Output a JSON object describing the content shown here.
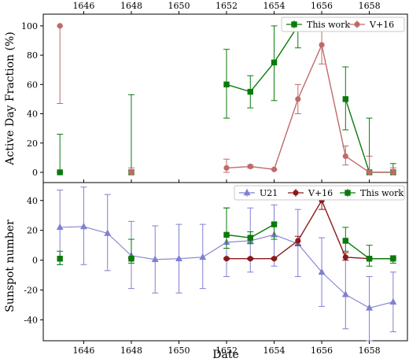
{
  "chart_data": [
    {
      "type": "line",
      "ylabel": "Active Day Fraction (%)",
      "xlim": [
        1644.3,
        1659.6
      ],
      "ylim": [
        -7,
        108
      ],
      "xticks_top": [
        1646,
        1648,
        1650,
        1652,
        1654,
        1656,
        1658
      ],
      "yticks": [
        0,
        20,
        40,
        60,
        80,
        100
      ],
      "grid": false,
      "legend": "top-right",
      "series": [
        {
          "name": "This work",
          "color": "#0a7a0a",
          "marker": "square",
          "points": [
            {
              "x": 1645,
              "y": 0,
              "lo": 0,
              "hi": 26
            },
            {
              "x": 1648,
              "y": 0,
              "lo": 0,
              "hi": 53
            },
            {
              "x": 1652,
              "y": 60,
              "lo": 37,
              "hi": 84
            },
            {
              "x": 1653,
              "y": 55,
              "lo": 44,
              "hi": 66
            },
            {
              "x": 1654,
              "y": 75,
              "lo": 49,
              "hi": 100
            },
            {
              "x": 1655,
              "y": 100,
              "lo": 85,
              "hi": 100
            },
            {
              "x": 1657,
              "y": 50,
              "lo": 29,
              "hi": 72
            },
            {
              "x": 1658,
              "y": 0,
              "lo": 0,
              "hi": 37
            },
            {
              "x": 1659,
              "y": 0,
              "lo": 0,
              "hi": 6
            }
          ],
          "connect": [
            [
              2,
              3,
              4,
              5
            ],
            [
              6,
              7,
              8
            ]
          ]
        },
        {
          "name": "V+16",
          "color": "#c06a6a",
          "marker": "circle",
          "points": [
            {
              "x": 1645,
              "y": 100,
              "lo": 47,
              "hi": 100
            },
            {
              "x": 1648,
              "y": 0,
              "lo": 0,
              "hi": 3
            },
            {
              "x": 1652,
              "y": 3,
              "lo": 0,
              "hi": 9
            },
            {
              "x": 1653,
              "y": 4,
              "lo": 3,
              "hi": 5
            },
            {
              "x": 1654,
              "y": 2,
              "lo": 2,
              "hi": 2
            },
            {
              "x": 1655,
              "y": 50,
              "lo": 40,
              "hi": 60
            },
            {
              "x": 1656,
              "y": 87,
              "lo": 74,
              "hi": 100
            },
            {
              "x": 1657,
              "y": 11,
              "lo": 5,
              "hi": 18
            },
            {
              "x": 1658,
              "y": 0,
              "lo": 0,
              "hi": 11
            },
            {
              "x": 1659,
              "y": 0,
              "lo": 0,
              "hi": 3
            }
          ],
          "connect": [
            [
              2,
              3,
              4,
              5,
              6,
              7,
              8,
              9
            ]
          ]
        }
      ]
    },
    {
      "type": "line",
      "xlabel": "Date",
      "ylabel": "Sunspot number",
      "xlim": [
        1644.3,
        1659.6
      ],
      "ylim": [
        -54,
        52
      ],
      "xticks": [
        1646,
        1648,
        1650,
        1652,
        1654,
        1656,
        1658
      ],
      "yticks": [
        -40,
        -20,
        0,
        20,
        40
      ],
      "grid": false,
      "legend": "top-right",
      "series": [
        {
          "name": "U21",
          "color": "#8080d0",
          "marker": "triangle",
          "points": [
            {
              "x": 1645,
              "y": 22,
              "lo": -3,
              "hi": 47
            },
            {
              "x": 1646,
              "y": 22.5,
              "lo": -3,
              "hi": 49
            },
            {
              "x": 1647,
              "y": 18,
              "lo": -7,
              "hi": 44
            },
            {
              "x": 1648,
              "y": 3,
              "lo": -19,
              "hi": 26
            },
            {
              "x": 1649,
              "y": 0.5,
              "lo": -22,
              "hi": 23
            },
            {
              "x": 1650,
              "y": 1,
              "lo": -22,
              "hi": 24
            },
            {
              "x": 1651,
              "y": 2,
              "lo": -19,
              "hi": 24
            },
            {
              "x": 1652,
              "y": 12,
              "lo": -11,
              "hi": 35
            },
            {
              "x": 1653,
              "y": 13,
              "lo": -8,
              "hi": 35
            },
            {
              "x": 1654,
              "y": 17,
              "lo": -4,
              "hi": 37
            },
            {
              "x": 1655,
              "y": 11,
              "lo": -11,
              "hi": 34
            },
            {
              "x": 1656,
              "y": -8,
              "lo": -31,
              "hi": 15
            },
            {
              "x": 1657,
              "y": -23,
              "lo": -46,
              "hi": 0
            },
            {
              "x": 1658,
              "y": -32,
              "lo": -54,
              "hi": -11
            },
            {
              "x": 1659,
              "y": -28,
              "lo": -48,
              "hi": -8
            }
          ],
          "connect": [
            [
              0,
              1,
              2,
              3,
              4,
              5,
              6,
              7,
              8,
              9,
              10,
              11,
              12,
              13,
              14
            ]
          ]
        },
        {
          "name": "V+16",
          "color": "#8b1a1a",
          "marker": "circle",
          "points": [
            {
              "x": 1648,
              "y": 1,
              "lo": 1,
              "hi": 1
            },
            {
              "x": 1652,
              "y": 1,
              "lo": 0.5,
              "hi": 1.5
            },
            {
              "x": 1653,
              "y": 1,
              "lo": 0.5,
              "hi": 1.5
            },
            {
              "x": 1654,
              "y": 1,
              "lo": 0.5,
              "hi": 1.5
            },
            {
              "x": 1655,
              "y": 13,
              "lo": 10,
              "hi": 16
            },
            {
              "x": 1656,
              "y": 40,
              "lo": 34,
              "hi": 41
            },
            {
              "x": 1657,
              "y": 2,
              "lo": 0,
              "hi": 5
            },
            {
              "x": 1658,
              "y": 1,
              "lo": 0.5,
              "hi": 1.5
            },
            {
              "x": 1659,
              "y": 1,
              "lo": 0.5,
              "hi": 1.5
            }
          ],
          "connect": [
            [
              1,
              2,
              3,
              4,
              5,
              6,
              7,
              8
            ]
          ]
        },
        {
          "name": "This work",
          "color": "#0a7a0a",
          "marker": "square",
          "points": [
            {
              "x": 1645,
              "y": 1,
              "lo": -3,
              "hi": 6
            },
            {
              "x": 1648,
              "y": 1,
              "lo": -2,
              "hi": 14
            },
            {
              "x": 1652,
              "y": 17,
              "lo": 8,
              "hi": 35
            },
            {
              "x": 1653,
              "y": 15,
              "lo": 11,
              "hi": 19
            },
            {
              "x": 1654,
              "y": 24,
              "lo": 14,
              "hi": 25
            },
            {
              "x": 1657,
              "y": 13,
              "lo": 6,
              "hi": 22
            },
            {
              "x": 1658,
              "y": 1,
              "lo": -4,
              "hi": 10
            },
            {
              "x": 1659,
              "y": 1,
              "lo": -2,
              "hi": 3
            }
          ],
          "connect": [
            [
              2,
              3,
              4
            ],
            [
              5,
              6,
              7
            ]
          ]
        }
      ]
    }
  ]
}
